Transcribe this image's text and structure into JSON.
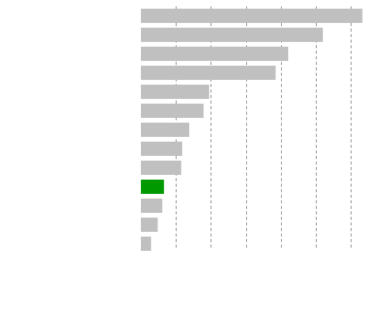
{
  "chart_data": {
    "type": "barh",
    "categories": [
      null,
      null,
      null,
      null,
      null,
      null,
      null,
      null,
      null,
      null,
      null,
      null,
      null
    ],
    "values": [
      6.33,
      5.2,
      4.21,
      3.85,
      1.95,
      1.79,
      1.38,
      1.18,
      1.15,
      0.66,
      0.61,
      0.48,
      0.29
    ],
    "colors": [
      "#c0c0c0",
      "#c0c0c0",
      "#c0c0c0",
      "#c0c0c0",
      "#c0c0c0",
      "#c0c0c0",
      "#c0c0c0",
      "#c0c0c0",
      "#c0c0c0",
      "#009900",
      "#c0c0c0",
      "#c0c0c0",
      "#c0c0c0"
    ],
    "xlim": [
      0,
      6.5
    ],
    "xticks": [
      1,
      2,
      3,
      4,
      5,
      6
    ],
    "grid": true
  }
}
